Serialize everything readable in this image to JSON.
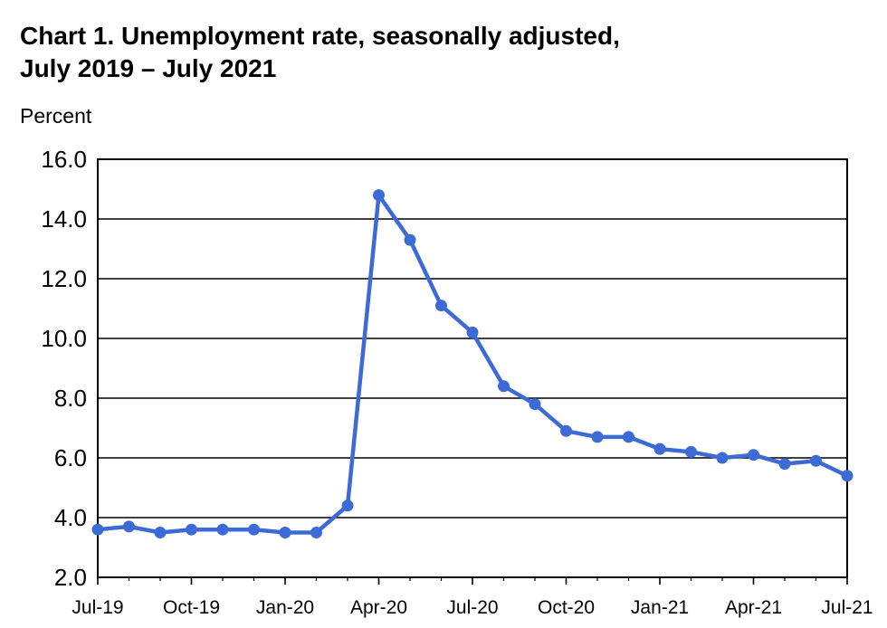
{
  "chart_data": {
    "type": "line",
    "title_line1": "Chart 1. Unemployment rate, seasonally adjusted,",
    "title_line2": "July 2019 – July 2021",
    "ylabel": "Percent",
    "xlabel": "",
    "ylim": [
      2.0,
      16.0
    ],
    "yticks": [
      "2.0",
      "4.0",
      "6.0",
      "8.0",
      "10.0",
      "12.0",
      "14.0",
      "16.0"
    ],
    "xtick_labels": [
      "Jul-19",
      "Oct-19",
      "Jan-20",
      "Apr-20",
      "Jul-20",
      "Oct-20",
      "Jan-21",
      "Apr-21",
      "Jul-21"
    ],
    "xtick_every": 3,
    "grid": true,
    "line_color": "#3c6bd6",
    "series": [
      {
        "values": [
          3.6,
          3.7,
          3.5,
          3.6,
          3.6,
          3.6,
          3.5,
          3.5,
          4.4,
          14.8,
          13.3,
          11.1,
          10.2,
          8.4,
          7.8,
          6.9,
          6.7,
          6.7,
          6.3,
          6.2,
          6.0,
          6.1,
          5.8,
          5.9,
          5.4
        ]
      }
    ]
  }
}
